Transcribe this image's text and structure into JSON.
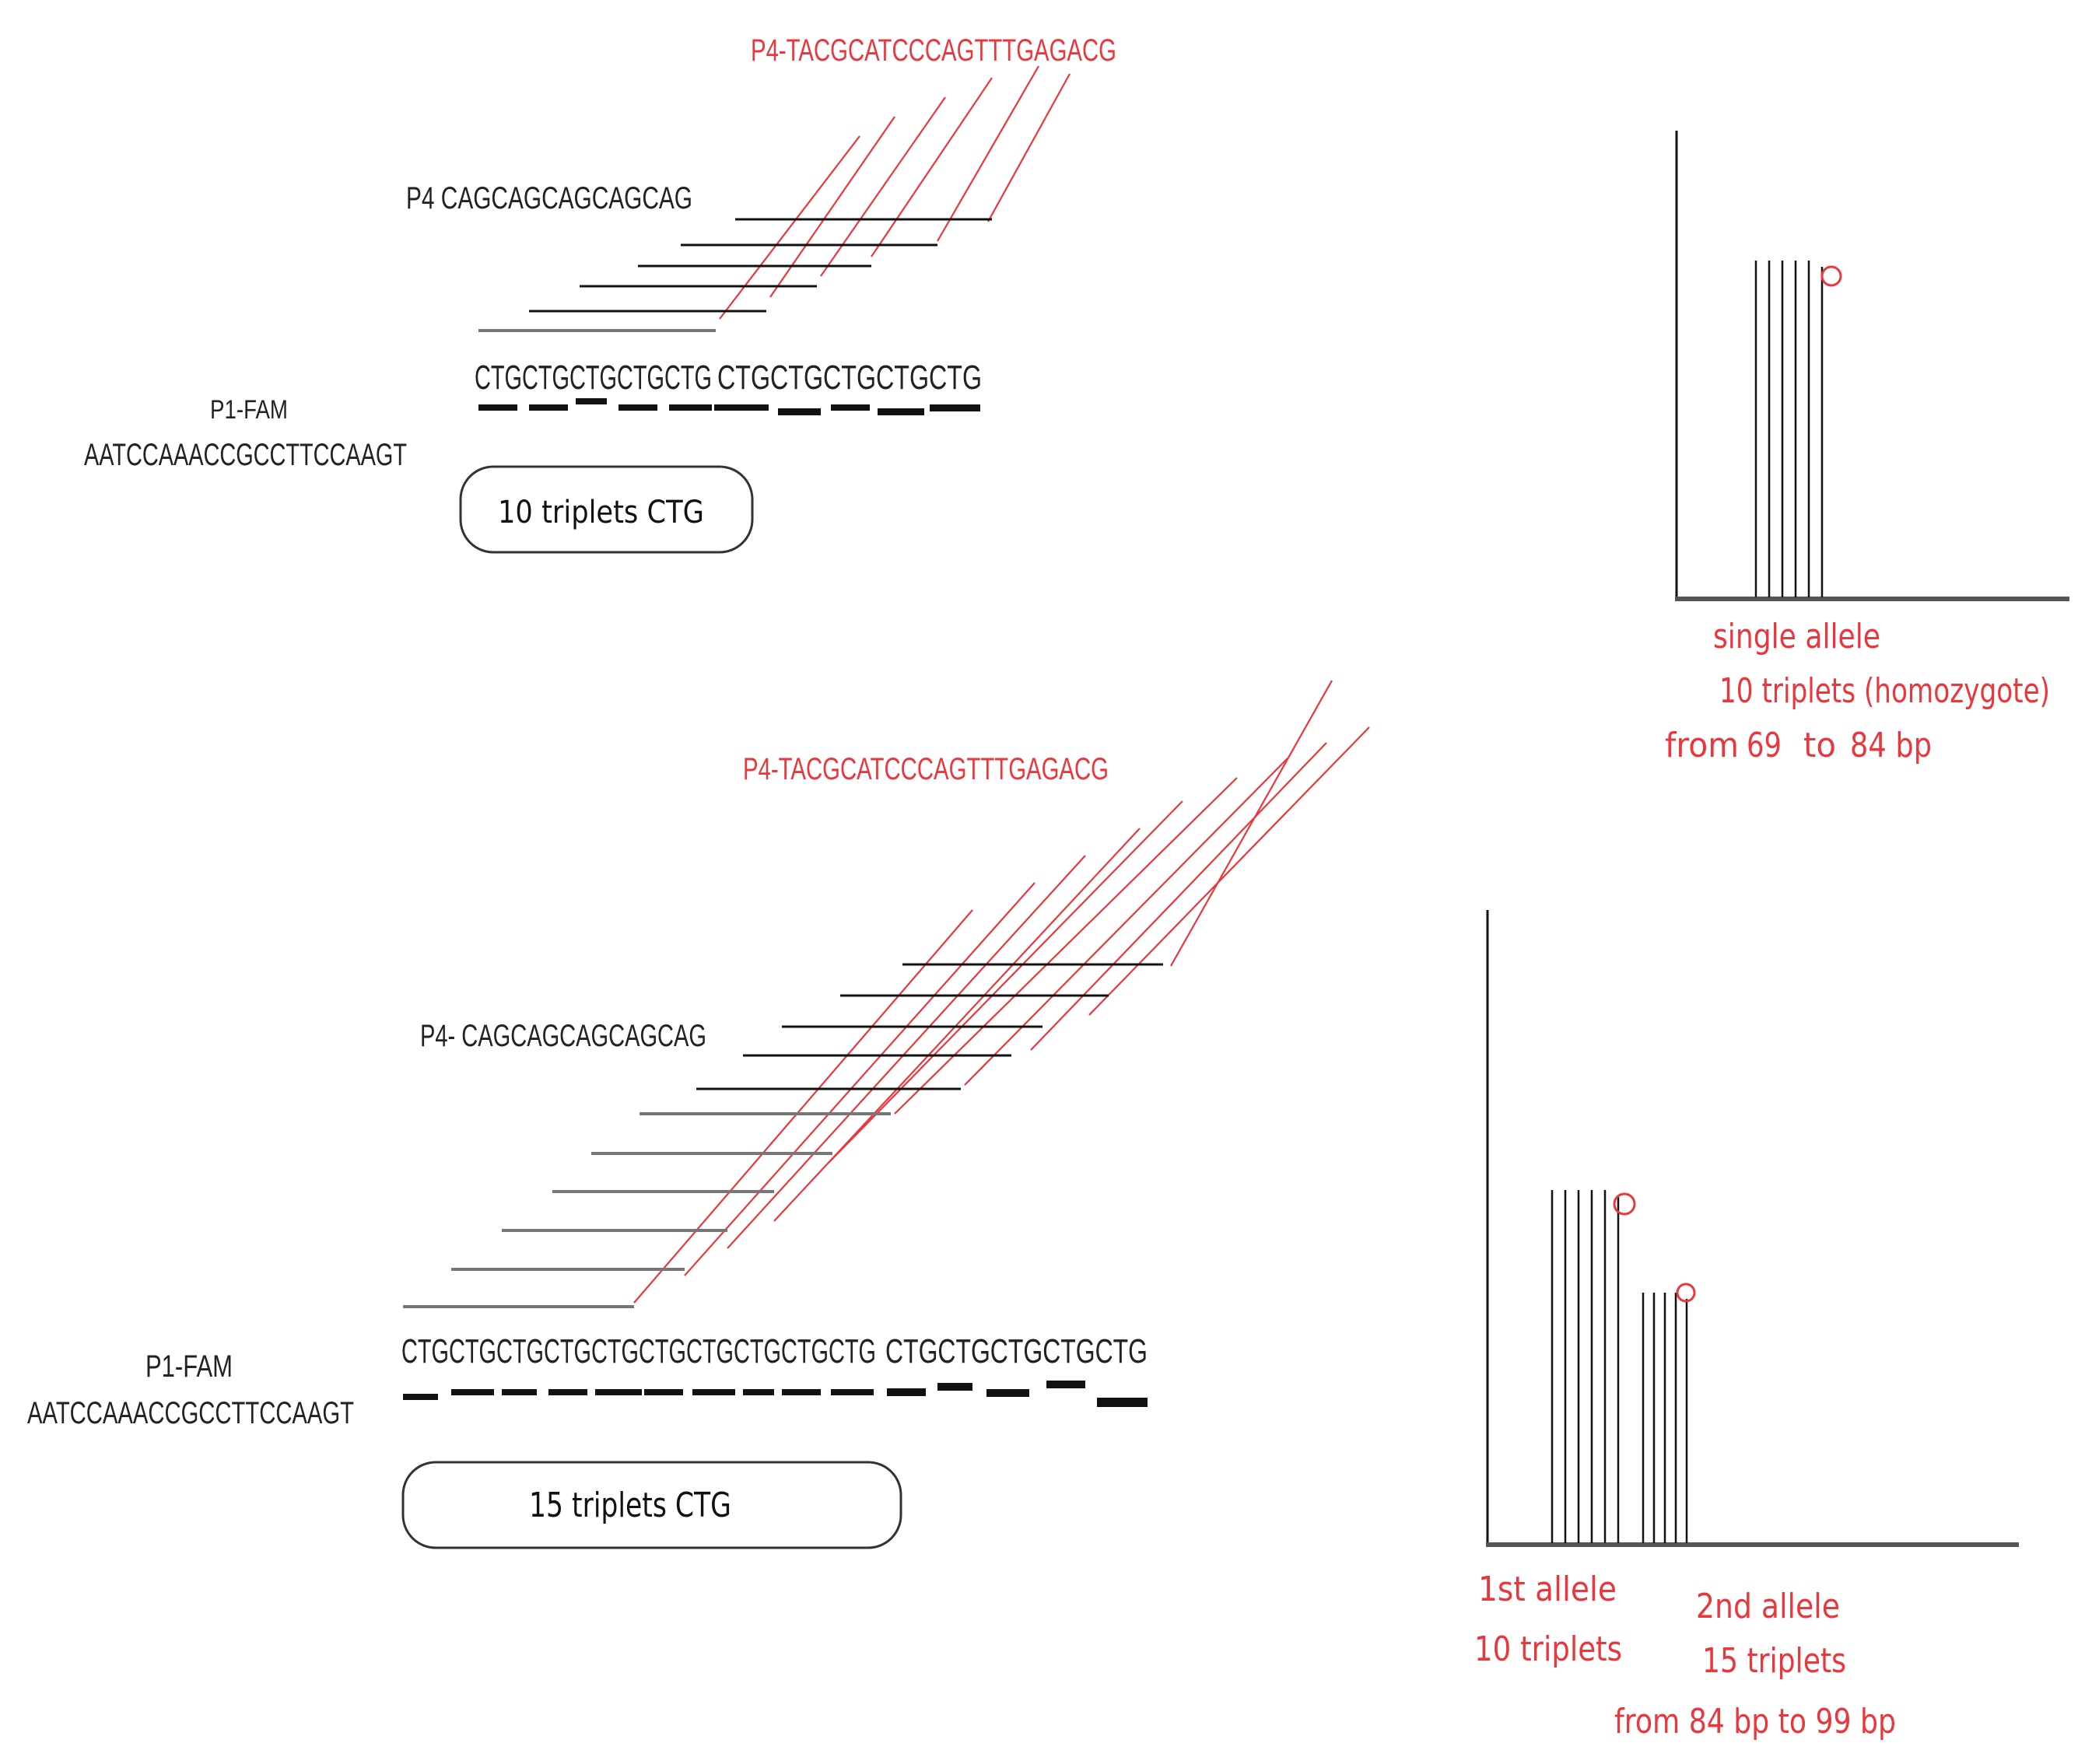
{
  "colors": {
    "red": "#e8383d",
    "black": "#111111",
    "gray": "#777777"
  },
  "panel_top": {
    "probe_red": "P4-TACGCATCCCAGTTTGAGACG",
    "probe_p4": "P4 CAGCAGCAGCAGCAG",
    "repeat_a": "CTGCTGCTGCTGCTG",
    "repeat_b": "CTGCTGCTGCTGCTG",
    "primer_name": "P1-FAM",
    "primer_seq": "AATCCAAACCGCCTTCCAAGT",
    "box_label": "10 triplets CTG",
    "peak_count": 6,
    "chart_label_1": "single allele",
    "chart_label_2": "10 triplets (homozygote)",
    "chart_label_3_from": "from",
    "chart_label_3_start": "69",
    "chart_label_3_to": "to",
    "chart_label_3_end": "84 bp"
  },
  "panel_bottom": {
    "probe_red": "P4-TACGCATCCCAGTTTGAGACG",
    "probe_p4": "P4- CAGCAGCAGCAGCAG",
    "repeat_a": "CTGCTGCTGCTGCTGCTGCTGCTGCTGCTG",
    "repeat_b": "CTGCTGCTGCTGCTG",
    "primer_name": "P1-FAM",
    "primer_seq": "AATCCAAACCGCCTTCCAAGT",
    "box_label": "15 triplets CTG",
    "allele1_peaks": 6,
    "allele2_peaks": 5,
    "allele1_label_1": "1st allele",
    "allele1_label_2": "10 triplets",
    "allele2_label_1": "2nd allele",
    "allele2_label_2": "15 triplets",
    "range_label": "from 84 bp to 99 bp"
  }
}
